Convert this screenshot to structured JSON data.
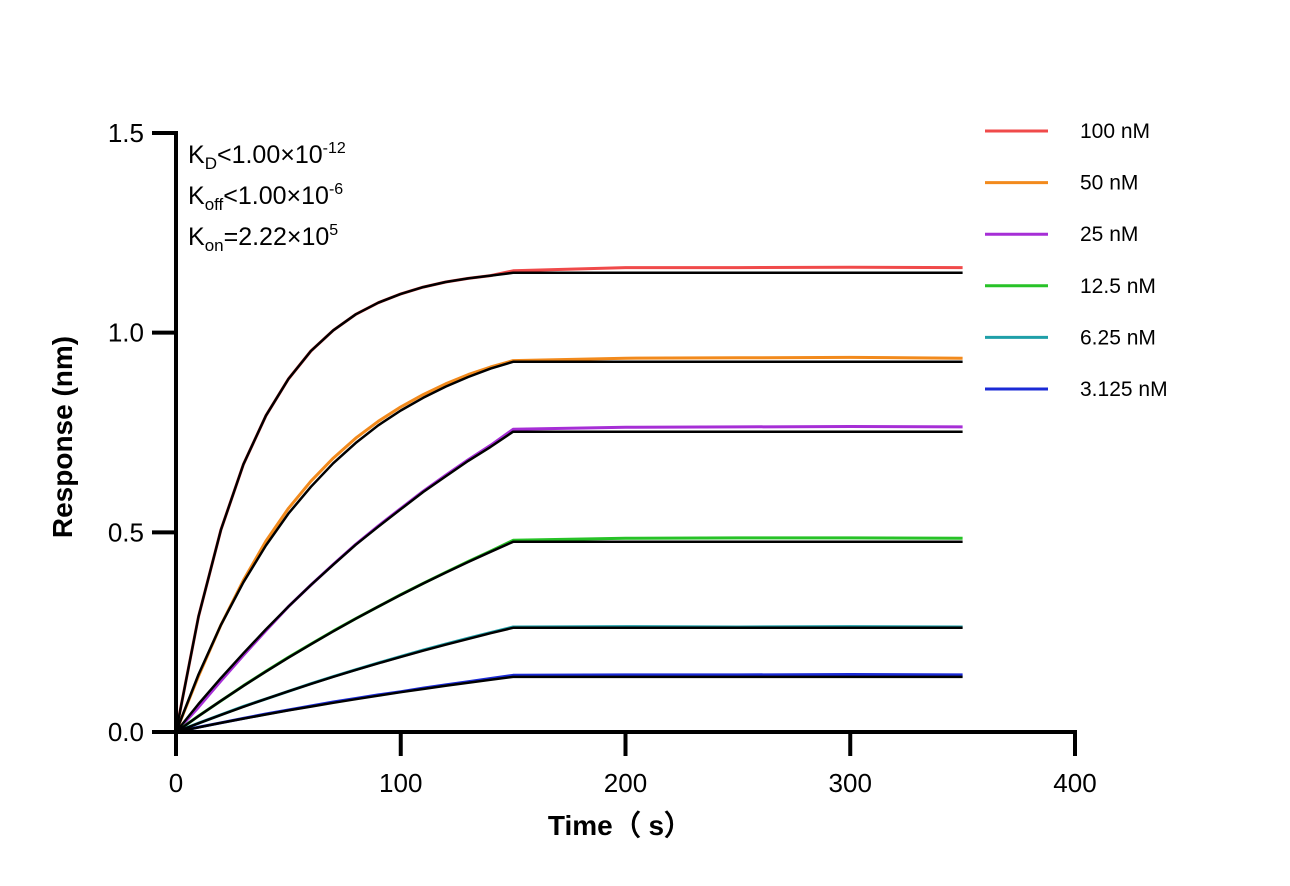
{
  "chart_data": {
    "type": "line",
    "title": "",
    "xlabel": "Time（ s）",
    "ylabel": "Response (nm)",
    "xlim": [
      0,
      400
    ],
    "ylim": [
      0,
      1.5
    ],
    "xticks": [
      "0",
      "100",
      "200",
      "300",
      "400"
    ],
    "yticks": [
      "0.0",
      "0.5",
      "1.0",
      "1.5"
    ],
    "grid": false,
    "legend_position": "top-right",
    "annotations": {
      "kd": {
        "label": "K",
        "sub": "D",
        "rel": "<1.00×10",
        "exp": "-12"
      },
      "koff": {
        "label": "K",
        "sub": "off",
        "rel": "<1.00×10",
        "exp": "-6"
      },
      "kon": {
        "label": "K",
        "sub": "on",
        "rel": "=2.22×10",
        "exp": "5"
      }
    },
    "fit_color": "#000000",
    "x": [
      0,
      10,
      20,
      30,
      40,
      50,
      60,
      70,
      80,
      90,
      100,
      110,
      120,
      130,
      140,
      150,
      200,
      250,
      300,
      350
    ],
    "series": [
      {
        "name": "100 nM",
        "color": "#f04a4a",
        "response": [
          0,
          0.289,
          0.506,
          0.67,
          0.792,
          0.884,
          0.954,
          1.006,
          1.046,
          1.075,
          1.097,
          1.114,
          1.127,
          1.136,
          1.143,
          1.155,
          1.163,
          1.163,
          1.164,
          1.163
        ],
        "fit": [
          0,
          0.289,
          0.506,
          0.67,
          0.792,
          0.884,
          0.954,
          1.006,
          1.046,
          1.075,
          1.097,
          1.114,
          1.127,
          1.136,
          1.143,
          1.15,
          1.15,
          1.15,
          1.15,
          1.15
        ]
      },
      {
        "name": "50 nM",
        "color": "#f28a1c",
        "response": [
          0,
          0.14,
          0.268,
          0.38,
          0.478,
          0.56,
          0.628,
          0.686,
          0.736,
          0.778,
          0.814,
          0.845,
          0.872,
          0.895,
          0.914,
          0.93,
          0.936,
          0.937,
          0.938,
          0.936
        ],
        "fit": [
          0,
          0.144,
          0.268,
          0.375,
          0.467,
          0.547,
          0.614,
          0.673,
          0.724,
          0.768,
          0.805,
          0.837,
          0.865,
          0.889,
          0.91,
          0.927,
          0.927,
          0.927,
          0.927,
          0.927
        ]
      },
      {
        "name": "25 nM",
        "color": "#a62ed6",
        "response": [
          0,
          0.062,
          0.128,
          0.192,
          0.254,
          0.314,
          0.368,
          0.42,
          0.47,
          0.516,
          0.56,
          0.603,
          0.643,
          0.682,
          0.718,
          0.758,
          0.763,
          0.764,
          0.765,
          0.764
        ],
        "fit": [
          0,
          0.07,
          0.135,
          0.197,
          0.257,
          0.314,
          0.368,
          0.419,
          0.469,
          0.514,
          0.558,
          0.601,
          0.64,
          0.679,
          0.714,
          0.752,
          0.752,
          0.752,
          0.752,
          0.752
        ]
      },
      {
        "name": "12.5 nM",
        "color": "#27c227",
        "response": [
          0,
          0.04,
          0.078,
          0.116,
          0.152,
          0.187,
          0.22,
          0.253,
          0.284,
          0.314,
          0.344,
          0.372,
          0.4,
          0.427,
          0.453,
          0.48,
          0.485,
          0.486,
          0.486,
          0.485
        ],
        "fit": [
          0,
          0.0397,
          0.0782,
          0.1154,
          0.1513,
          0.1861,
          0.2197,
          0.2522,
          0.2836,
          0.3139,
          0.3433,
          0.3718,
          0.3991,
          0.4256,
          0.4513,
          0.4762,
          0.4762,
          0.4762,
          0.4762,
          0.4762
        ]
      },
      {
        "name": "6.25 nM",
        "color": "#1f9fa8",
        "response": [
          0,
          0.022,
          0.043,
          0.064,
          0.083,
          0.102,
          0.121,
          0.139,
          0.156,
          0.173,
          0.189,
          0.205,
          0.22,
          0.235,
          0.249,
          0.263,
          0.264,
          0.263,
          0.264,
          0.263
        ],
        "fit": [
          0,
          0.0218,
          0.0429,
          0.0632,
          0.0829,
          0.102,
          0.1204,
          0.1382,
          0.1554,
          0.172,
          0.1881,
          0.2037,
          0.2187,
          0.2332,
          0.2473,
          0.261,
          0.261,
          0.261,
          0.261,
          0.261
        ]
      },
      {
        "name": "3.125 nM",
        "color": "#1a2ad6",
        "response": [
          0,
          0.012,
          0.023,
          0.034,
          0.045,
          0.055,
          0.065,
          0.075,
          0.084,
          0.093,
          0.101,
          0.11,
          0.118,
          0.126,
          0.134,
          0.142,
          0.143,
          0.143,
          0.144,
          0.143
        ],
        "fit": [
          0,
          0.0115,
          0.0227,
          0.0335,
          0.0439,
          0.054,
          0.0637,
          0.0731,
          0.0822,
          0.091,
          0.0996,
          0.1078,
          0.1157,
          0.1234,
          0.1309,
          0.1381,
          0.1381,
          0.1381,
          0.1381,
          0.1381
        ]
      }
    ]
  }
}
